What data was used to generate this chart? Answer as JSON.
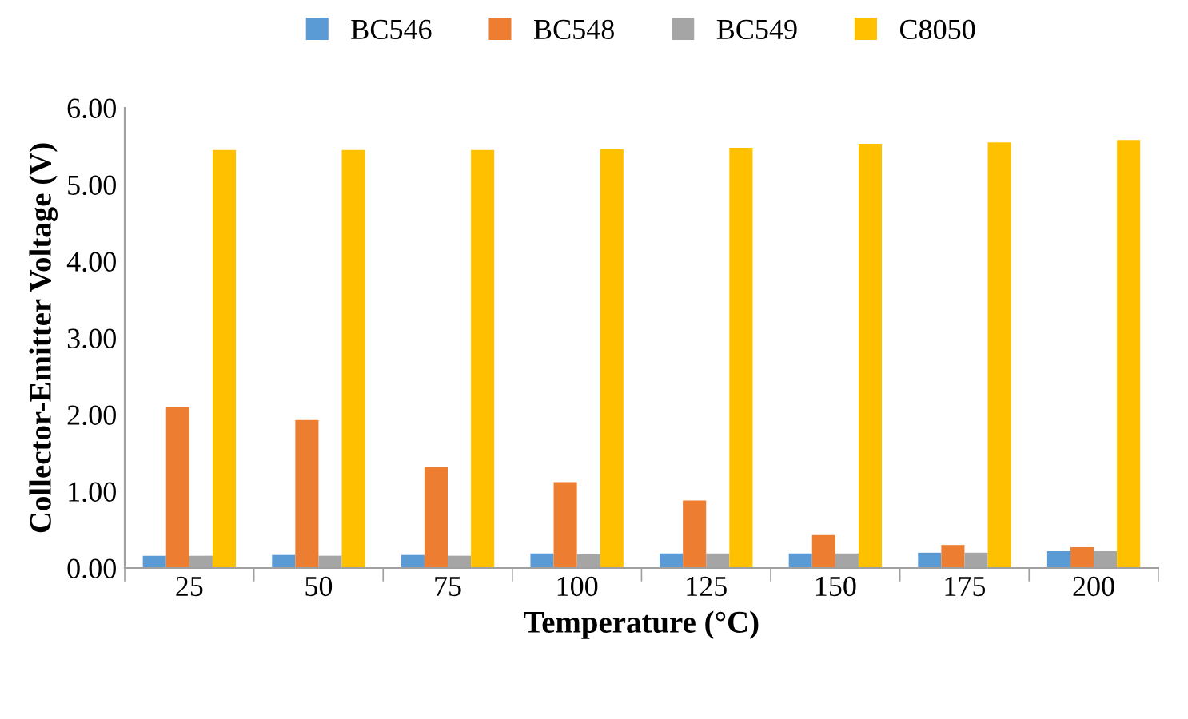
{
  "chart_data": {
    "type": "bar",
    "xlabel": "Temperature (°C)",
    "ylabel": "Collector-Emitter Voltage (V)",
    "categories": [
      "25",
      "50",
      "75",
      "100",
      "125",
      "150",
      "175",
      "200"
    ],
    "series": [
      {
        "name": "BC546",
        "color": "#5b9bd5",
        "values": [
          0.16,
          0.17,
          0.17,
          0.19,
          0.19,
          0.19,
          0.2,
          0.22
        ]
      },
      {
        "name": "BC548",
        "color": "#ed7d31",
        "values": [
          2.1,
          1.93,
          1.32,
          1.12,
          0.88,
          0.43,
          0.3,
          0.27
        ]
      },
      {
        "name": "BC549",
        "color": "#a5a5a5",
        "values": [
          0.16,
          0.16,
          0.16,
          0.18,
          0.19,
          0.19,
          0.2,
          0.22
        ]
      },
      {
        "name": "C8050",
        "color": "#ffc000",
        "values": [
          5.45,
          5.45,
          5.45,
          5.46,
          5.48,
          5.53,
          5.55,
          5.58
        ]
      }
    ],
    "ylim": [
      0,
      6
    ],
    "yticks": [
      {
        "value": 0,
        "label": "0.00"
      },
      {
        "value": 1,
        "label": "1.00"
      },
      {
        "value": 2,
        "label": "2.00"
      },
      {
        "value": 3,
        "label": "3.00"
      },
      {
        "value": 4,
        "label": "4.00"
      },
      {
        "value": 5,
        "label": "5.00"
      },
      {
        "value": 6,
        "label": "6.00"
      }
    ],
    "legend": "top",
    "grid": false
  }
}
